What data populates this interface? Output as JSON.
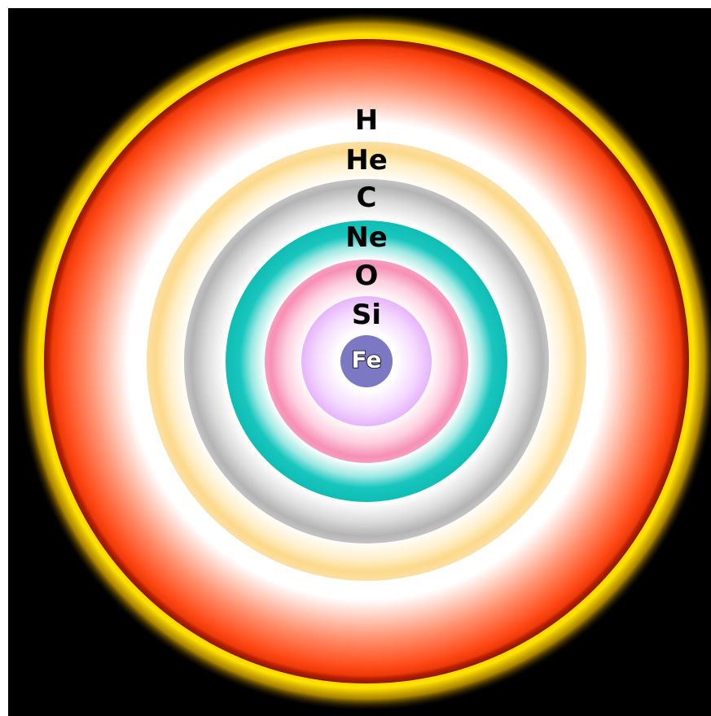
{
  "diagram": {
    "background_color": "#000000",
    "layers": [
      {
        "id": "h",
        "label": "H",
        "color": "#ff3c0a",
        "glow_color": "#ffd000"
      },
      {
        "id": "he",
        "label": "He",
        "color": "#fcd98a"
      },
      {
        "id": "c",
        "label": "C",
        "color": "#b8b8b8"
      },
      {
        "id": "ne",
        "label": "Ne",
        "color": "#12c8c0"
      },
      {
        "id": "o",
        "label": "O",
        "color": "#f78fb4"
      },
      {
        "id": "si",
        "label": "Si",
        "color": "#ebb8ff"
      },
      {
        "id": "fe",
        "label": "Fe",
        "color": "#7c78c4"
      }
    ]
  }
}
